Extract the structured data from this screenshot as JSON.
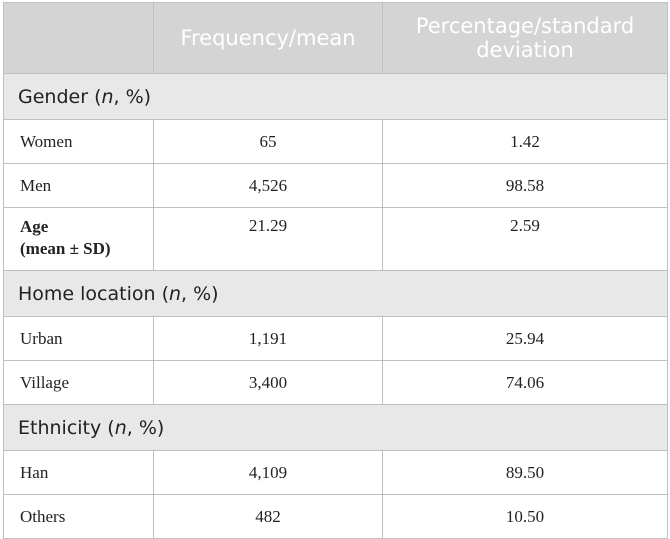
{
  "header": {
    "col1": "",
    "col2": "Frequency/mean",
    "col3": "Percentage/standard deviation"
  },
  "gender": {
    "title": "Gender",
    "title_paren_open": " (",
    "title_n": "n",
    "title_rest": ", %)",
    "rows": [
      {
        "label": "Women",
        "freq": "65",
        "pct": "1.42"
      },
      {
        "label": "Men",
        "freq": "4,526",
        "pct": "98.58"
      }
    ]
  },
  "age": {
    "label_line1": "Age",
    "label_line2": "(mean ± SD)",
    "freq": "21.29",
    "pct": "2.59"
  },
  "home": {
    "title": "Home location",
    "title_paren_open": " (",
    "title_n": "n",
    "title_rest": ", %)",
    "rows": [
      {
        "label": "Urban",
        "freq": "1,191",
        "pct": "25.94"
      },
      {
        "label": "Village",
        "freq": "3,400",
        "pct": "74.06"
      }
    ]
  },
  "ethnicity": {
    "title": "Ethnicity",
    "title_paren_open": " (",
    "title_n": "n",
    "title_rest": ", %)",
    "rows": [
      {
        "label": "Han",
        "freq": "4,109",
        "pct": "89.50"
      },
      {
        "label": "Others",
        "freq": "482",
        "pct": "10.50"
      }
    ]
  }
}
